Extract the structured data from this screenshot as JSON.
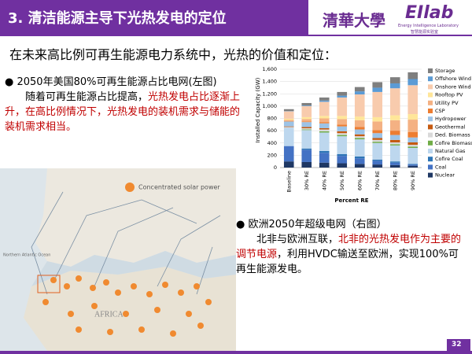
{
  "header": {
    "title": "3. 清洁能源主导下光热发电的定位",
    "logo_cn": "清華大學",
    "logo_lab": "EIlab",
    "logo_sub": "Energy Intelligence Laboratory",
    "logo_sub_cn": "智慧能源实验室"
  },
  "subtitle": "在未来高比例可再生能源电力系统中，光热的价值和定位：",
  "bullets": [
    {
      "heading": "2050年美国80%可再生能源占比电网(左图)",
      "body": [
        "随着可再生能源占比提高，",
        "光热发电占比逐渐上升，在高比例情况下，光热发电的装机需求与储能的装机需求相当。"
      ]
    },
    {
      "heading": "欧洲2050年超级电网（右图）",
      "body": [
        "北非与欧洲互联，",
        "北非的光热发电作为主要的调节电源",
        "，利用HVDC输送至欧洲，实现100%可再生能源发电。"
      ]
    }
  ],
  "map": {
    "legend": "Concentrated solar power",
    "africa": "AFRICA",
    "ocean": "Northern Atlantic Ocean"
  },
  "page_number": "32",
  "chart_data": {
    "type": "stacked_bar",
    "x_label": "Percent RE",
    "y_label": "Installed Capacity (GW)",
    "categories": [
      "Baseline",
      "30% RE",
      "40% RE",
      "50% RE",
      "60% RE",
      "70% RE",
      "80% RE",
      "90% RE"
    ],
    "ylim": [
      0,
      1600
    ],
    "yticks": [
      0,
      200,
      400,
      600,
      800,
      {
        "value": 1000,
        "label": "1,000"
      },
      {
        "value": 1200,
        "label": "1,200"
      },
      {
        "value": 1400,
        "label": "1,400"
      },
      {
        "value": 1600,
        "label": "1,600"
      }
    ],
    "series": [
      {
        "name": "Storage",
        "color": "#7f7f7f",
        "values": [
          30,
          40,
          50,
          60,
          70,
          90,
          100,
          110
        ]
      },
      {
        "name": "Offshore Wind",
        "color": "#5b9bd5",
        "values": [
          5,
          10,
          20,
          30,
          50,
          70,
          80,
          100
        ]
      },
      {
        "name": "Onshore Wind",
        "color": "#f8cbad",
        "values": [
          120,
          180,
          230,
          300,
          360,
          410,
          440,
          470
        ]
      },
      {
        "name": "Rooftop PV",
        "color": "#ffe699",
        "values": [
          20,
          30,
          40,
          50,
          60,
          70,
          80,
          90
        ]
      },
      {
        "name": "Utility PV",
        "color": "#f4b183",
        "values": [
          20,
          40,
          60,
          90,
          110,
          140,
          170,
          200
        ]
      },
      {
        "name": "CSP",
        "color": "#ed7d31",
        "values": [
          5,
          10,
          20,
          30,
          40,
          50,
          70,
          90
        ]
      },
      {
        "name": "Hydropower",
        "color": "#9dc3e6",
        "values": [
          80,
          80,
          80,
          80,
          80,
          80,
          80,
          80
        ]
      },
      {
        "name": "Geothermal",
        "color": "#c55a11",
        "values": [
          10,
          20,
          20,
          30,
          30,
          30,
          40,
          40
        ]
      },
      {
        "name": "Ded. Biomass",
        "color": "#d9d9d9",
        "values": [
          10,
          20,
          30,
          30,
          30,
          30,
          30,
          30
        ]
      },
      {
        "name": "Cofire Biomass",
        "color": "#70ad47",
        "values": [
          0,
          10,
          20,
          20,
          20,
          20,
          20,
          20
        ]
      },
      {
        "name": "Natural Gas",
        "color": "#bdd7ee",
        "values": [
          300,
          300,
          300,
          290,
          280,
          270,
          260,
          260
        ]
      },
      {
        "name": "Cofire Coal",
        "color": "#2e75b6",
        "values": [
          0,
          20,
          30,
          30,
          30,
          20,
          20,
          10
        ]
      },
      {
        "name": "Coal",
        "color": "#4472c4",
        "values": [
          250,
          200,
          160,
          120,
          90,
          60,
          40,
          20
        ]
      },
      {
        "name": "Nuclear",
        "color": "#1f3864",
        "values": [
          100,
          90,
          80,
          70,
          60,
          50,
          40,
          30
        ]
      }
    ],
    "grid": true
  }
}
